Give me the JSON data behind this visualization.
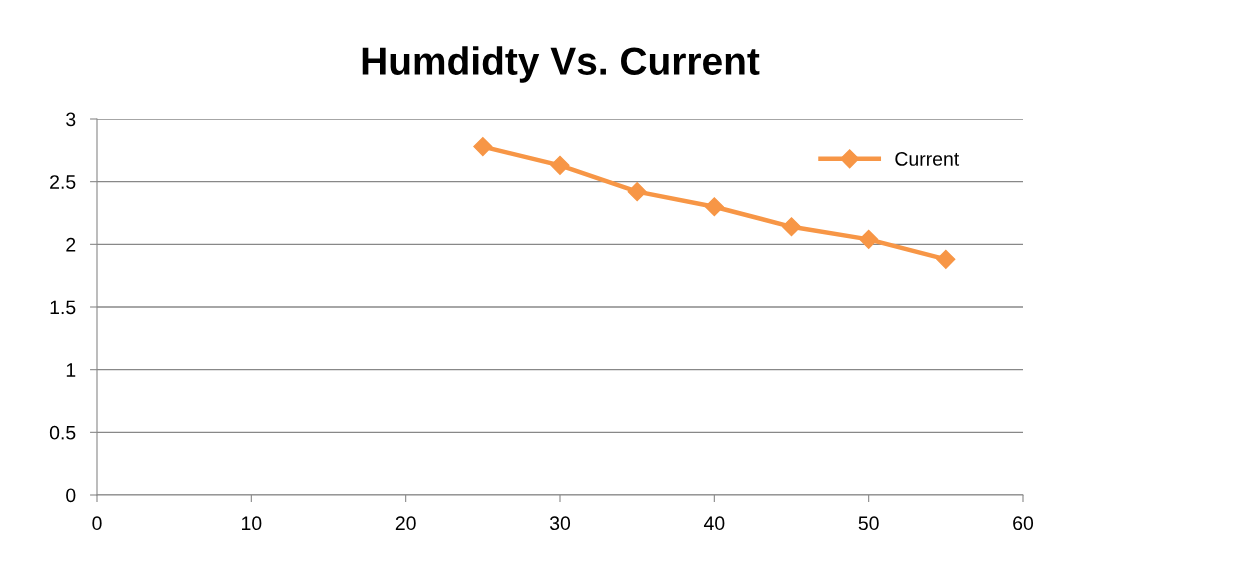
{
  "chart_data": {
    "type": "line",
    "title": "Humdidty Vs. Current",
    "x": [
      25,
      30,
      35,
      40,
      45,
      50,
      55
    ],
    "series": [
      {
        "name": "Current",
        "color": "#f79646",
        "values": [
          2.78,
          2.63,
          2.42,
          2.3,
          2.14,
          2.04,
          1.88
        ]
      }
    ],
    "xlim": [
      0,
      60
    ],
    "xticks": [
      0,
      10,
      20,
      30,
      40,
      50,
      60
    ],
    "ylim": [
      0,
      3
    ],
    "yticks": [
      0,
      0.5,
      1,
      1.5,
      2,
      2.5,
      3
    ],
    "grid": "y",
    "legend": "top right",
    "marker": "diamond",
    "line_style": "solid"
  }
}
